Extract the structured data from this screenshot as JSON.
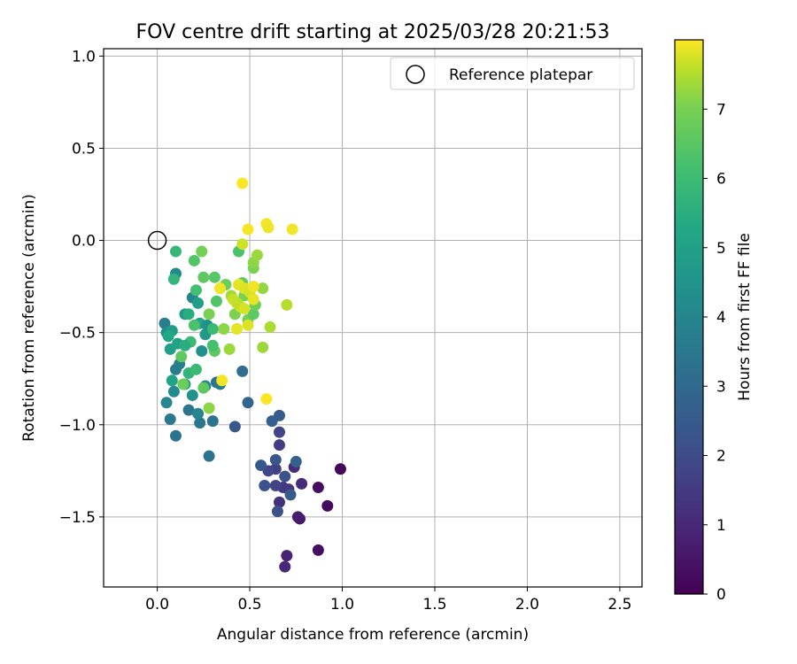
{
  "chart_data": {
    "type": "scatter",
    "title": "FOV centre drift starting at 2025/03/28 20:21:53",
    "xlabel": "Angular distance from reference (arcmin)",
    "ylabel": "Rotation from reference (arcmin)",
    "colorbar_label": "Hours from first FF file",
    "colormap": "viridis",
    "xlim": [
      -0.29,
      2.62
    ],
    "ylim": [
      -1.88,
      1.04
    ],
    "xticks": [
      0.0,
      0.5,
      1.0,
      1.5,
      2.0,
      2.5
    ],
    "xtick_labels": [
      "0.0",
      "0.5",
      "1.0",
      "1.5",
      "2.0",
      "2.5"
    ],
    "yticks": [
      1.0,
      0.5,
      0.0,
      -0.5,
      -1.0,
      -1.5
    ],
    "ytick_labels": [
      "1.0",
      "0.5",
      "0.0",
      "−0.5",
      "−1.0",
      "−1.5"
    ],
    "colorbar_ticks": [
      0,
      1,
      2,
      3,
      4,
      5,
      6,
      7
    ],
    "colorbar_range": [
      0,
      8
    ],
    "grid": true,
    "legend": {
      "position": "top-right",
      "entries": [
        "Reference platepar"
      ]
    },
    "reference_point": {
      "x": 0.0,
      "y": 0.0,
      "label": "Reference platepar"
    },
    "points": [
      {
        "x": 0.99,
        "y": -1.24,
        "c": 0.1
      },
      {
        "x": 0.92,
        "y": -1.44,
        "c": 0.2
      },
      {
        "x": 0.87,
        "y": -1.34,
        "c": 0.3
      },
      {
        "x": 0.87,
        "y": -1.68,
        "c": 0.35
      },
      {
        "x": 0.77,
        "y": -1.51,
        "c": 0.5
      },
      {
        "x": 0.76,
        "y": -1.5,
        "c": 0.6
      },
      {
        "x": 0.7,
        "y": -1.71,
        "c": 0.8
      },
      {
        "x": 0.69,
        "y": -1.77,
        "c": 0.9
      },
      {
        "x": 0.78,
        "y": -1.32,
        "c": 1.0
      },
      {
        "x": 0.74,
        "y": -1.23,
        "c": 1.0
      },
      {
        "x": 0.71,
        "y": -1.35,
        "c": 1.2
      },
      {
        "x": 0.68,
        "y": -1.34,
        "c": 1.3
      },
      {
        "x": 0.66,
        "y": -1.42,
        "c": 1.1
      },
      {
        "x": 0.64,
        "y": -1.24,
        "c": 1.5
      },
      {
        "x": 0.66,
        "y": -1.11,
        "c": 1.4
      },
      {
        "x": 0.66,
        "y": -1.04,
        "c": 1.6
      },
      {
        "x": 0.6,
        "y": -1.25,
        "c": 1.7
      },
      {
        "x": 0.64,
        "y": -1.33,
        "c": 1.6
      },
      {
        "x": 0.65,
        "y": -1.47,
        "c": 2.0
      },
      {
        "x": 0.58,
        "y": -1.33,
        "c": 2.0
      },
      {
        "x": 0.56,
        "y": -1.22,
        "c": 2.2
      },
      {
        "x": 0.64,
        "y": -1.19,
        "c": 2.1
      },
      {
        "x": 0.69,
        "y": -1.28,
        "c": 2.0
      },
      {
        "x": 0.72,
        "y": -1.38,
        "c": 2.3
      },
      {
        "x": 0.75,
        "y": -1.2,
        "c": 2.5
      },
      {
        "x": 0.66,
        "y": -0.95,
        "c": 2.3
      },
      {
        "x": 0.62,
        "y": -0.98,
        "c": 2.4
      },
      {
        "x": 0.42,
        "y": -1.01,
        "c": 2.2
      },
      {
        "x": 0.49,
        "y": -0.88,
        "c": 2.6
      },
      {
        "x": 0.46,
        "y": -0.71,
        "c": 2.8
      },
      {
        "x": 0.28,
        "y": -1.17,
        "c": 3.0
      },
      {
        "x": 0.3,
        "y": -0.98,
        "c": 3.0
      },
      {
        "x": 0.23,
        "y": -0.99,
        "c": 3.1
      },
      {
        "x": 0.1,
        "y": -1.06,
        "c": 3.0
      },
      {
        "x": 0.07,
        "y": -0.97,
        "c": 3.2
      },
      {
        "x": 0.17,
        "y": -0.92,
        "c": 3.1
      },
      {
        "x": 0.22,
        "y": -0.94,
        "c": 3.6
      },
      {
        "x": 0.05,
        "y": -0.88,
        "c": 3.6
      },
      {
        "x": 0.09,
        "y": -0.82,
        "c": 3.8
      },
      {
        "x": 0.08,
        "y": -0.76,
        "c": 4.6
      },
      {
        "x": 0.15,
        "y": -0.78,
        "c": 4.4
      },
      {
        "x": 0.19,
        "y": -0.84,
        "c": 4.0
      },
      {
        "x": 0.26,
        "y": -0.79,
        "c": 3.6
      },
      {
        "x": 0.32,
        "y": -0.77,
        "c": 3.0
      },
      {
        "x": 0.34,
        "y": -0.78,
        "c": 3.3
      },
      {
        "x": 0.1,
        "y": -0.7,
        "c": 3.3
      },
      {
        "x": 0.12,
        "y": -0.67,
        "c": 3.5
      },
      {
        "x": 0.07,
        "y": -0.59,
        "c": 4.5
      },
      {
        "x": 0.11,
        "y": -0.56,
        "c": 4.6
      },
      {
        "x": 0.04,
        "y": -0.45,
        "c": 3.4
      },
      {
        "x": 0.05,
        "y": -0.5,
        "c": 4.0
      },
      {
        "x": 0.08,
        "y": -0.49,
        "c": 4.4
      },
      {
        "x": 0.06,
        "y": -0.52,
        "c": 4.8
      },
      {
        "x": 0.1,
        "y": -0.18,
        "c": 3.7
      },
      {
        "x": 0.09,
        "y": -0.21,
        "c": 5.2
      },
      {
        "x": 0.1,
        "y": -0.06,
        "c": 5.3
      },
      {
        "x": 0.15,
        "y": -0.4,
        "c": 4.2
      },
      {
        "x": 0.17,
        "y": -0.4,
        "c": 5.0
      },
      {
        "x": 0.19,
        "y": -0.31,
        "c": 3.6
      },
      {
        "x": 0.22,
        "y": -0.34,
        "c": 4.5
      },
      {
        "x": 0.21,
        "y": -0.27,
        "c": 5.6
      },
      {
        "x": 0.2,
        "y": -0.11,
        "c": 5.8
      },
      {
        "x": 0.24,
        "y": -0.06,
        "c": 6.3
      },
      {
        "x": 0.23,
        "y": -0.45,
        "c": 4.6
      },
      {
        "x": 0.24,
        "y": -0.6,
        "c": 4.0
      },
      {
        "x": 0.26,
        "y": -0.51,
        "c": 4.3
      },
      {
        "x": 0.27,
        "y": -0.46,
        "c": 4.0
      },
      {
        "x": 0.2,
        "y": -0.46,
        "c": 5.7
      },
      {
        "x": 0.18,
        "y": -0.55,
        "c": 5.4
      },
      {
        "x": 0.15,
        "y": -0.57,
        "c": 5.0
      },
      {
        "x": 0.13,
        "y": -0.63,
        "c": 6.0
      },
      {
        "x": 0.17,
        "y": -0.72,
        "c": 5.2
      },
      {
        "x": 0.21,
        "y": -0.7,
        "c": 5.4
      },
      {
        "x": 0.25,
        "y": -0.8,
        "c": 6.0
      },
      {
        "x": 0.14,
        "y": -0.78,
        "c": 6.2
      },
      {
        "x": 0.28,
        "y": -0.91,
        "c": 6.6
      },
      {
        "x": 0.31,
        "y": -0.6,
        "c": 6.0
      },
      {
        "x": 0.3,
        "y": -0.57,
        "c": 5.6
      },
      {
        "x": 0.28,
        "y": -0.4,
        "c": 6.4
      },
      {
        "x": 0.3,
        "y": -0.48,
        "c": 5.4
      },
      {
        "x": 0.32,
        "y": -0.33,
        "c": 5.8
      },
      {
        "x": 0.31,
        "y": -0.2,
        "c": 5.9
      },
      {
        "x": 0.25,
        "y": -0.2,
        "c": 6.0
      },
      {
        "x": 0.34,
        "y": -0.26,
        "c": 6.7
      },
      {
        "x": 0.37,
        "y": -0.24,
        "c": 6.2
      },
      {
        "x": 0.36,
        "y": -0.48,
        "c": 6.6
      },
      {
        "x": 0.39,
        "y": -0.59,
        "c": 6.8
      },
      {
        "x": 0.4,
        "y": -0.3,
        "c": 6.9
      },
      {
        "x": 0.42,
        "y": -0.4,
        "c": 6.4
      },
      {
        "x": 0.44,
        "y": -0.06,
        "c": 5.7
      },
      {
        "x": 0.46,
        "y": -0.23,
        "c": 6.1
      },
      {
        "x": 0.47,
        "y": -0.3,
        "c": 6.4
      },
      {
        "x": 0.49,
        "y": -0.43,
        "c": 6.3
      },
      {
        "x": 0.52,
        "y": -0.4,
        "c": 6.0
      },
      {
        "x": 0.53,
        "y": -0.35,
        "c": 6.2
      },
      {
        "x": 0.52,
        "y": -0.15,
        "c": 6.4
      },
      {
        "x": 0.52,
        "y": -0.12,
        "c": 6.6
      },
      {
        "x": 0.54,
        "y": -0.08,
        "c": 6.8
      },
      {
        "x": 0.57,
        "y": -0.26,
        "c": 6.7
      },
      {
        "x": 0.57,
        "y": -0.58,
        "c": 6.8
      },
      {
        "x": 0.61,
        "y": -0.47,
        "c": 7.0
      },
      {
        "x": 0.7,
        "y": -0.35,
        "c": 7.1
      },
      {
        "x": 0.46,
        "y": -0.02,
        "c": 7.4
      },
      {
        "x": 0.49,
        "y": 0.06,
        "c": 7.9
      },
      {
        "x": 0.46,
        "y": 0.31,
        "c": 7.95
      },
      {
        "x": 0.59,
        "y": 0.09,
        "c": 7.9
      },
      {
        "x": 0.6,
        "y": 0.07,
        "c": 7.8
      },
      {
        "x": 0.73,
        "y": 0.06,
        "c": 7.85
      },
      {
        "x": 0.44,
        "y": -0.24,
        "c": 7.7
      },
      {
        "x": 0.47,
        "y": -0.26,
        "c": 7.6
      },
      {
        "x": 0.5,
        "y": -0.28,
        "c": 7.5
      },
      {
        "x": 0.52,
        "y": -0.25,
        "c": 7.8
      },
      {
        "x": 0.52,
        "y": -0.32,
        "c": 7.7
      },
      {
        "x": 0.45,
        "y": -0.36,
        "c": 7.4
      },
      {
        "x": 0.43,
        "y": -0.34,
        "c": 7.2
      },
      {
        "x": 0.41,
        "y": -0.32,
        "c": 7.3
      },
      {
        "x": 0.34,
        "y": -0.26,
        "c": 7.8
      },
      {
        "x": 0.49,
        "y": -0.46,
        "c": 7.6
      },
      {
        "x": 0.43,
        "y": -0.48,
        "c": 7.7
      },
      {
        "x": 0.35,
        "y": -0.76,
        "c": 7.9
      },
      {
        "x": 0.59,
        "y": -0.86,
        "c": 7.95
      },
      {
        "x": 0.47,
        "y": -0.37,
        "c": 7.5
      }
    ]
  }
}
